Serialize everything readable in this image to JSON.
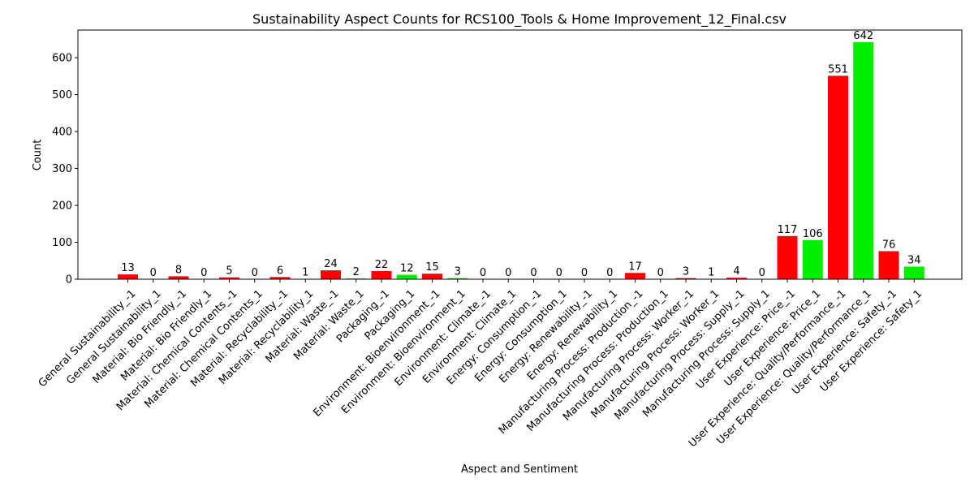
{
  "chart_data": {
    "type": "bar",
    "title": "Sustainability Aspect Counts for RCS100_Tools & Home Improvement_12_Final.csv",
    "xlabel": "Aspect and Sentiment",
    "ylabel": "Count",
    "ylim": [
      0,
      675
    ],
    "yticks": [
      0,
      100,
      200,
      300,
      400,
      500,
      600
    ],
    "grid": false,
    "colors": {
      "negative": "#ff0000",
      "positive": "#00ee00"
    },
    "categories": [
      "General Sustainability_-1",
      "General Sustainability_1",
      "Material: Bio Friendly_-1",
      "Material: Bio Friendly_1",
      "Material: Chemical Contents_-1",
      "Material: Chemical Contents_1",
      "Material: Recyclability_-1",
      "Material: Recyclability_1",
      "Material: Waste_-1",
      "Material: Waste_1",
      "Packaging_-1",
      "Packaging_1",
      "Environment: Bioenvironment_-1",
      "Environment: Bioenvironment_1",
      "Environment: Climate_-1",
      "Environment: Climate_1",
      "Energy: Consumption_-1",
      "Energy: Consumption_1",
      "Energy: Renewability_-1",
      "Energy: Renewability_1",
      "Manufacturing Process: Production_-1",
      "Manufacturing Process: Production_1",
      "Manufacturing Process: Worker_-1",
      "Manufacturing Process: Worker_1",
      "Manufacturing Process: Supply_-1",
      "Manufacturing Process: Supply_1",
      "User Experience: Price_-1",
      "User Experience: Price_1",
      "User Experience: Quality/Performance_-1",
      "User Experience: Quality/Performance_1",
      "User Experience: Safety_-1",
      "User Experience: Safety_1"
    ],
    "values": [
      13,
      0,
      8,
      0,
      5,
      0,
      6,
      1,
      24,
      2,
      22,
      12,
      15,
      3,
      0,
      0,
      0,
      0,
      0,
      0,
      17,
      0,
      3,
      1,
      4,
      0,
      117,
      106,
      551,
      642,
      76,
      34
    ]
  }
}
